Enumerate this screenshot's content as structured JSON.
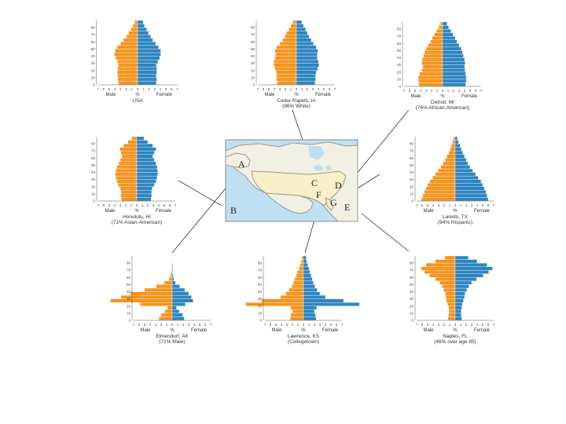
{
  "colors": {
    "male": "#f7941d",
    "female": "#2e86c1",
    "bar_edge": "#ffffff",
    "axis": "#555555",
    "connector": "#333333",
    "ocean": "#bfe0f2",
    "land": "#f2efe3",
    "usa": "#f7f0c8",
    "border": "#9a9a9a"
  },
  "map": {
    "letters": [
      {
        "label": "A"
      },
      {
        "label": "B"
      },
      {
        "label": "C"
      },
      {
        "label": "D"
      },
      {
        "label": "E"
      },
      {
        "label": "F"
      },
      {
        "label": "G"
      }
    ]
  },
  "chart_data": [
    {
      "type": "bar",
      "orientation": "horizontal-pyramid",
      "age_ticks": [
        "0",
        "5",
        "10",
        "15",
        "20",
        "25",
        "30",
        "35",
        "40",
        "45",
        "50",
        "55",
        "60",
        "65",
        "70",
        "75",
        "80",
        "85"
      ],
      "x_ticks": [
        "7",
        "6",
        "5",
        "4",
        "3",
        "2",
        "1",
        "0",
        "1",
        "2",
        "3",
        "4",
        "5",
        "6",
        "7"
      ],
      "xlabel_left": "Male",
      "xlabel_mid": "%",
      "xlabel_right": "Female",
      "caption1": "USA",
      "caption2": "",
      "series": [
        {
          "name": "Male",
          "values": [
            3.4,
            3.5,
            3.5,
            3.6,
            3.5,
            3.4,
            3.6,
            3.9,
            4.1,
            4.0,
            3.6,
            3.0,
            2.5,
            2.0,
            1.6,
            1.2,
            0.8,
            0.5
          ]
        },
        {
          "name": "Female",
          "values": [
            3.3,
            3.4,
            3.3,
            3.4,
            3.4,
            3.3,
            3.6,
            3.9,
            4.1,
            4.1,
            3.7,
            3.2,
            2.7,
            2.3,
            1.9,
            1.6,
            1.2,
            1.0
          ]
        }
      ]
    },
    {
      "type": "bar",
      "orientation": "horizontal-pyramid",
      "age_ticks": [
        "0",
        "5",
        "10",
        "15",
        "20",
        "25",
        "30",
        "35",
        "40",
        "45",
        "50",
        "55",
        "60",
        "65",
        "70",
        "75",
        "80",
        "85"
      ],
      "x_ticks": [
        "7",
        "6",
        "5",
        "4",
        "3",
        "2",
        "1",
        "0",
        "1",
        "2",
        "3",
        "4",
        "5",
        "6",
        "7"
      ],
      "xlabel_left": "Male",
      "xlabel_mid": "%",
      "xlabel_right": "Female",
      "caption1": "Cedar Rapids, IA",
      "caption2": "(96% White)",
      "series": [
        {
          "name": "Male",
          "values": [
            3.5,
            3.6,
            3.6,
            3.7,
            3.9,
            4.1,
            4.1,
            3.9,
            3.8,
            3.9,
            3.6,
            3.0,
            2.5,
            2.1,
            1.8,
            1.4,
            1.0,
            0.6
          ]
        },
        {
          "name": "Female",
          "values": [
            3.4,
            3.5,
            3.5,
            3.6,
            3.9,
            4.1,
            4.0,
            3.8,
            3.8,
            3.9,
            3.6,
            3.1,
            2.7,
            2.3,
            2.0,
            1.7,
            1.3,
            1.0
          ]
        }
      ]
    },
    {
      "type": "bar",
      "orientation": "horizontal-pyramid",
      "age_ticks": [
        "0",
        "5",
        "10",
        "15",
        "20",
        "25",
        "30",
        "35",
        "40",
        "45",
        "50",
        "55",
        "60",
        "65",
        "70",
        "75",
        "80",
        "85"
      ],
      "x_ticks": [
        "7",
        "6",
        "5",
        "4",
        "3",
        "2",
        "1",
        "0",
        "1",
        "2",
        "3",
        "4",
        "5",
        "6",
        "7"
      ],
      "xlabel_left": "Male",
      "xlabel_mid": "%",
      "xlabel_right": "Female",
      "caption1": "Detroit, MI",
      "caption2": "(76% African-American)",
      "series": [
        {
          "name": "Male",
          "values": [
            4.3,
            4.4,
            4.4,
            4.2,
            3.8,
            3.6,
            3.8,
            3.7,
            3.5,
            3.3,
            3.0,
            2.6,
            2.2,
            1.9,
            1.5,
            1.1,
            0.7,
            0.4
          ]
        },
        {
          "name": "Female",
          "values": [
            4.2,
            4.3,
            4.3,
            4.2,
            4.1,
            4.0,
            4.1,
            4.0,
            3.8,
            3.6,
            3.4,
            3.0,
            2.6,
            2.3,
            1.9,
            1.5,
            1.1,
            0.8
          ]
        }
      ]
    },
    {
      "type": "bar",
      "orientation": "horizontal-pyramid",
      "age_ticks": [
        "0",
        "5",
        "10",
        "15",
        "20",
        "25",
        "30",
        "35",
        "40",
        "45",
        "50",
        "55",
        "60",
        "65",
        "70",
        "75",
        "80",
        "85"
      ],
      "x_ticks": [
        "7",
        "6",
        "5",
        "4",
        "3",
        "2",
        "1",
        "0",
        "1",
        "2",
        "3",
        "4",
        "5",
        "6",
        "7"
      ],
      "xlabel_left": "Male",
      "xlabel_mid": "%",
      "xlabel_right": "Female",
      "caption1": "Honolulu, HI",
      "caption2": "(71% Asian-American)",
      "series": [
        {
          "name": "Male",
          "values": [
            2.8,
            2.9,
            2.9,
            3.0,
            3.4,
            3.6,
            3.8,
            3.9,
            3.8,
            3.6,
            3.3,
            3.0,
            2.7,
            2.9,
            3.1,
            2.4,
            1.6,
            0.9
          ]
        },
        {
          "name": "Female",
          "values": [
            2.6,
            2.7,
            2.7,
            2.8,
            3.2,
            3.5,
            3.7,
            3.8,
            3.8,
            3.7,
            3.5,
            3.2,
            2.9,
            3.2,
            3.5,
            2.9,
            2.0,
            1.3
          ]
        }
      ]
    },
    {
      "type": "bar",
      "orientation": "horizontal-pyramid",
      "age_ticks": [
        "0",
        "5",
        "10",
        "15",
        "20",
        "25",
        "30",
        "35",
        "40",
        "45",
        "50",
        "55",
        "60",
        "65",
        "70",
        "75",
        "80",
        "85"
      ],
      "x_ticks": [
        "7",
        "6",
        "5",
        "4",
        "3",
        "2",
        "1",
        "0",
        "1",
        "2",
        "3",
        "4",
        "5",
        "6",
        "7"
      ],
      "xlabel_left": "Male",
      "xlabel_mid": "%",
      "xlabel_right": "Female",
      "caption1": "Laredo, TX",
      "caption2": "(94% Hispanic)",
      "series": [
        {
          "name": "Male",
          "values": [
            6.1,
            5.9,
            5.6,
            5.3,
            5.0,
            4.6,
            4.1,
            3.6,
            3.1,
            2.6,
            2.2,
            1.8,
            1.5,
            1.2,
            0.9,
            0.7,
            0.5,
            0.3
          ]
        },
        {
          "name": "Female",
          "values": [
            6.0,
            5.8,
            5.6,
            5.3,
            5.0,
            4.7,
            4.2,
            3.7,
            3.2,
            2.7,
            2.3,
            2.0,
            1.7,
            1.4,
            1.1,
            0.9,
            0.6,
            0.4
          ]
        }
      ]
    },
    {
      "type": "bar",
      "orientation": "horizontal-pyramid",
      "age_ticks": [
        "0",
        "5",
        "10",
        "15",
        "20",
        "25",
        "30",
        "35",
        "40",
        "45",
        "50",
        "55",
        "60",
        "65",
        "70",
        "75",
        "80",
        "85"
      ],
      "x_ticks": [
        "7",
        "6",
        "5",
        "4",
        "3",
        "2",
        "1",
        "0",
        "1",
        "2",
        "3",
        "4",
        "5",
        "6",
        "7"
      ],
      "xlabel_left": "Male",
      "xlabel_mid": "%",
      "xlabel_right": "Female",
      "caption1": "Elmendorf, AK",
      "caption2": "(71% Male)",
      "series": [
        {
          "name": "Male",
          "values": [
            2.4,
            2.0,
            1.3,
            0.9,
            5.8,
            11.2,
            9.3,
            7.6,
            5.0,
            2.9,
            1.4,
            0.6,
            0.3,
            0.2,
            0.1,
            0.1,
            0.0,
            0.0
          ]
        },
        {
          "name": "Female",
          "values": [
            2.2,
            1.9,
            1.3,
            0.8,
            2.4,
            3.8,
            3.5,
            3.0,
            2.3,
            1.4,
            0.6,
            0.3,
            0.2,
            0.1,
            0.1,
            0.1,
            0.0,
            0.0
          ]
        }
      ]
    },
    {
      "type": "bar",
      "orientation": "horizontal-pyramid",
      "age_ticks": [
        "0",
        "5",
        "10",
        "15",
        "20",
        "25",
        "30",
        "35",
        "40",
        "45",
        "50",
        "55",
        "60",
        "65",
        "70",
        "75",
        "80",
        "85"
      ],
      "x_ticks": [
        "7",
        "6",
        "5",
        "4",
        "3",
        "2",
        "1",
        "0",
        "1",
        "2",
        "3",
        "4",
        "5",
        "6",
        "7"
      ],
      "xlabel_left": "Male",
      "xlabel_mid": "%",
      "xlabel_right": "Female",
      "caption1": "Lawrence, KS",
      "caption2": "(Collegetown)",
      "series": [
        {
          "name": "Male",
          "values": [
            2.4,
            2.3,
            2.0,
            2.3,
            10.5,
            7.6,
            4.2,
            3.2,
            2.6,
            2.1,
            1.8,
            1.6,
            1.3,
            1.1,
            0.8,
            0.6,
            0.4,
            0.3
          ]
        },
        {
          "name": "Female",
          "values": [
            2.3,
            2.2,
            2.0,
            2.4,
            10.2,
            7.3,
            4.0,
            3.0,
            2.5,
            2.1,
            1.8,
            1.6,
            1.4,
            1.2,
            1.0,
            0.8,
            0.6,
            0.5
          ]
        }
      ]
    },
    {
      "type": "bar",
      "orientation": "horizontal-pyramid",
      "age_ticks": [
        "0",
        "5",
        "10",
        "15",
        "20",
        "25",
        "30",
        "35",
        "40",
        "45",
        "50",
        "55",
        "60",
        "65",
        "70",
        "75",
        "80",
        "85"
      ],
      "x_ticks": [
        "7",
        "6",
        "5",
        "4",
        "3",
        "2",
        "1",
        "0",
        "1",
        "2",
        "3",
        "4",
        "5",
        "6",
        "7"
      ],
      "xlabel_left": "Male",
      "xlabel_mid": "%",
      "xlabel_right": "Female",
      "caption1": "Naples, FL",
      "caption2": "(46% over age 65)",
      "series": [
        {
          "name": "Male",
          "values": [
            1.3,
            1.2,
            1.1,
            1.2,
            1.4,
            1.6,
            1.7,
            1.8,
            2.1,
            2.4,
            2.8,
            3.6,
            4.6,
            5.6,
            6.2,
            5.3,
            3.6,
            1.9
          ]
        },
        {
          "name": "Female",
          "values": [
            1.2,
            1.1,
            1.1,
            1.2,
            1.3,
            1.5,
            1.7,
            1.8,
            2.1,
            2.5,
            3.0,
            3.9,
            5.1,
            6.1,
            6.8,
            5.8,
            4.0,
            2.4
          ]
        }
      ]
    }
  ]
}
